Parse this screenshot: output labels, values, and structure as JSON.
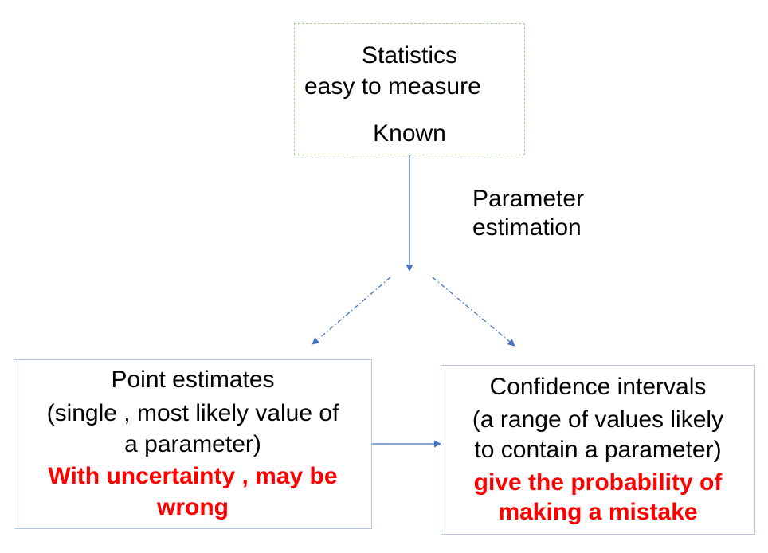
{
  "diagram": {
    "statistics_box": {
      "lines": [
        "Statistics",
        "easy to measure",
        "Known"
      ]
    },
    "edge_label": {
      "lines": [
        "Parameter",
        "estimation"
      ]
    },
    "point_box": {
      "lines": [
        "Point estimates",
        "(single , most likely value of",
        "a parameter)"
      ],
      "highlight_lines": [
        "With uncertainty , may be",
        "wrong"
      ]
    },
    "ci_box": {
      "lines": [
        "Confidence intervals",
        "(a range of values likely",
        "to contain a parameter)"
      ],
      "highlight_lines": [
        "give the  probability of",
        "making a mistake"
      ]
    },
    "colors": {
      "line": "#4472c4",
      "highlight": "#ff0000",
      "stats_border": "#a9d18e",
      "box_border": "#b4c7e7"
    }
  }
}
